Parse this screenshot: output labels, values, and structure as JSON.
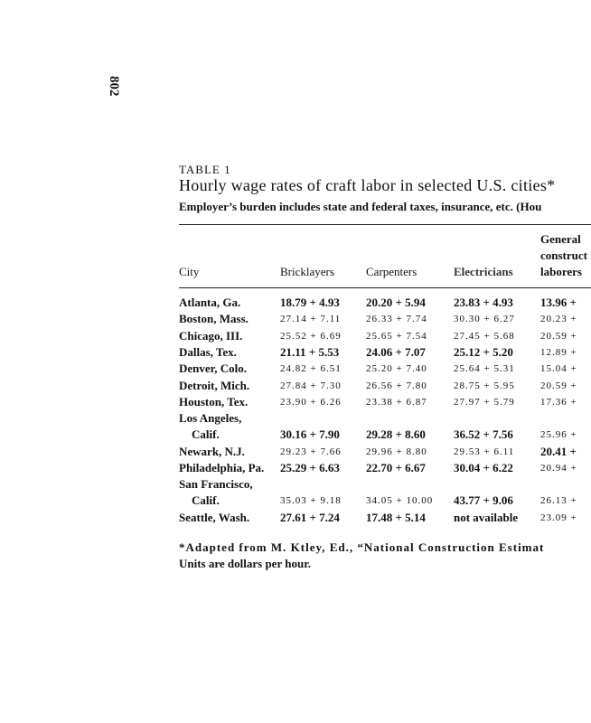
{
  "page_number": "802",
  "table": {
    "label": "TABLE 1",
    "title": "Hourly wage rates of craft labor in selected U.S. cities*",
    "subtitle": "Employer’s burden includes state and federal taxes, insurance, etc. (Hou",
    "headers": {
      "city": "City",
      "columns": [
        [
          "Bricklayers"
        ],
        [
          "Carpenters"
        ],
        [
          "Electricians"
        ],
        [
          "General",
          "construct",
          "laborers"
        ]
      ]
    },
    "rows": [
      {
        "city": [
          "Atlanta, Ga."
        ],
        "cells": [
          "18.79 + 4.93",
          "20.20 + 5.94",
          "23.83 + 4.93",
          "13.96 +"
        ]
      },
      {
        "city": [
          "Boston, Mass."
        ],
        "cells": [
          "27.14 + 7.11",
          "26.33 + 7.74",
          "30.30 + 6.27",
          "20.23 +"
        ]
      },
      {
        "city": [
          "Chicago, III."
        ],
        "cells": [
          "25.52 + 6.69",
          "25.65 + 7.54",
          "27.45 + 5.68",
          "20.59 +"
        ]
      },
      {
        "city": [
          "Dallas, Tex."
        ],
        "cells": [
          "21.11 + 5.53",
          "24.06 + 7.07",
          "25.12 + 5.20",
          "12.89 +"
        ]
      },
      {
        "city": [
          "Denver, Colo."
        ],
        "cells": [
          "24.82 + 6.51",
          "25.20 + 7.40",
          "25.64 + 5.31",
          "15.04 +"
        ]
      },
      {
        "city": [
          "Detroit, Mich."
        ],
        "cells": [
          "27.84 + 7.30",
          "26.56 + 7.80",
          "28.75 + 5.95",
          "20.59 +"
        ]
      },
      {
        "city": [
          "Houston, Tex."
        ],
        "cells": [
          "23.90 + 6.26",
          "23.38 + 6.87",
          "27.97 + 5.79",
          "17.36 +"
        ]
      },
      {
        "city": [
          "Los Angeles,",
          "Calif."
        ],
        "cells": [
          "30.16 + 7.90",
          "29.28 + 8.60",
          "36.52 + 7.56",
          "25.96 +"
        ]
      },
      {
        "city": [
          "Newark, N.J."
        ],
        "cells": [
          "29.23 + 7.66",
          "29.96 + 8.80",
          "29.53 + 6.11",
          "20.41 +"
        ]
      },
      {
        "city": [
          "Philadelphia, Pa."
        ],
        "cells": [
          "25.29 + 6.63",
          "22.70 + 6.67",
          "30.04 + 6.22",
          "20.94 +"
        ]
      },
      {
        "city": [
          "San Francisco,",
          "Calif."
        ],
        "cells": [
          "35.03 + 9.18",
          "34.05 + 10.00",
          "43.77 + 9.06",
          "26.13 +"
        ]
      },
      {
        "city": [
          "Seattle, Wash."
        ],
        "cells": [
          "27.61 + 7.24",
          "17.48 + 5.14",
          "not available",
          "23.09 +"
        ]
      }
    ],
    "footnotes": [
      "*Adapted from M. Ktley, Ed., “National Construction Estimat",
      "Units are dollars per hour."
    ]
  }
}
